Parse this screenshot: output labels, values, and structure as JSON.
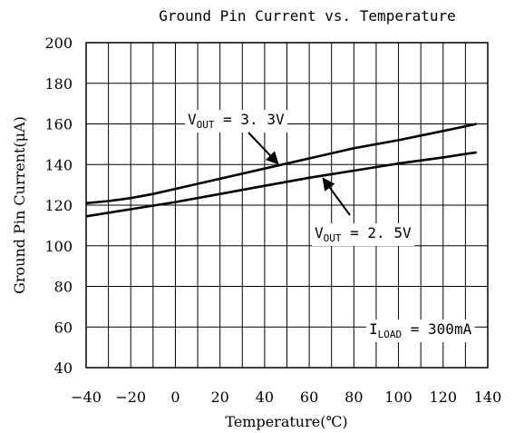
{
  "chart_data": {
    "type": "line",
    "title": "Ground Pin Current vs. Temperature",
    "xlabel": "Temperature(℃)",
    "ylabel": "Ground Pin Current(μA)",
    "xlim": [
      -40,
      140
    ],
    "ylim": [
      40,
      200
    ],
    "xticks": [
      -40,
      -20,
      0,
      20,
      40,
      60,
      80,
      100,
      120,
      140
    ],
    "yticks": [
      40,
      60,
      80,
      100,
      120,
      140,
      160,
      180,
      200
    ],
    "grid": true,
    "series": [
      {
        "label_main": "V",
        "label_sub": "OUT",
        "label_rest": " = 3. 3V",
        "x": [
          -40,
          -30,
          -20,
          -10,
          0,
          20,
          40,
          60,
          80,
          100,
          120,
          135
        ],
        "y": [
          121,
          122,
          123.5,
          125.5,
          128,
          133,
          138,
          143,
          148,
          152,
          156.5,
          160
        ]
      },
      {
        "label_main": "V",
        "label_sub": "OUT",
        "label_rest": " = 2. 5V",
        "x": [
          -40,
          -20,
          0,
          20,
          40,
          60,
          80,
          100,
          120,
          135
        ],
        "y": [
          114.5,
          118,
          121.5,
          125.5,
          129.5,
          133.5,
          137,
          140.5,
          143.5,
          146
        ]
      }
    ],
    "annotations": [
      {
        "main": "I",
        "sub": "LOAD",
        "rest": " = 300mA"
      }
    ]
  }
}
